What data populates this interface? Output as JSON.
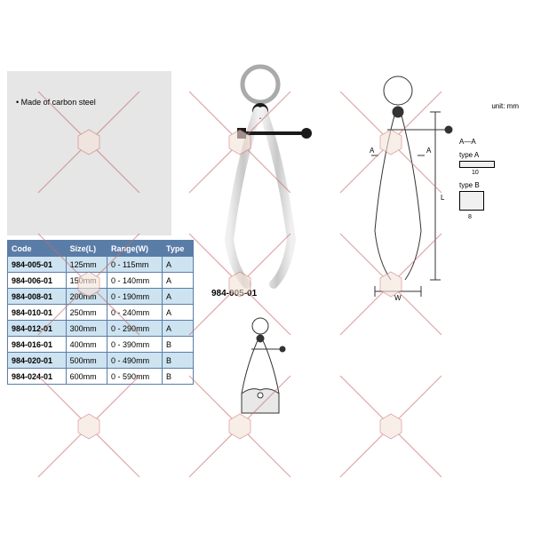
{
  "note": "Made of carbon steel",
  "model_label": "984-005-01",
  "unit_label": "unit: mm",
  "section_label": "A—A",
  "typeA_label": "type A",
  "typeB_label": "type B",
  "dimA": "10",
  "dimB1": "8",
  "dimB2": "8",
  "dim_W": "W",
  "dim_L": "L",
  "table": {
    "headers": [
      "Code",
      "Size(L)",
      "Range(W)",
      "Type"
    ],
    "rows": [
      [
        "984-005-01",
        "125mm",
        "0 - 115mm",
        "A"
      ],
      [
        "984-006-01",
        "150mm",
        "0 - 140mm",
        "A"
      ],
      [
        "984-008-01",
        "200mm",
        "0 - 190mm",
        "A"
      ],
      [
        "984-010-01",
        "250mm",
        "0 - 240mm",
        "A"
      ],
      [
        "984-012-01",
        "300mm",
        "0 - 290mm",
        "A"
      ],
      [
        "984-016-01",
        "400mm",
        "0 - 390mm",
        "B"
      ],
      [
        "984-020-01",
        "500mm",
        "0 - 490mm",
        "B"
      ],
      [
        "984-024-01",
        "600mm",
        "0 - 590mm",
        "B"
      ]
    ],
    "header_bg": "#5a7da8",
    "header_fg": "#ffffff",
    "row_alt_bg": "#cde3f0",
    "row_bg": "#ffffff",
    "border": "#5a7da8"
  },
  "watermark": {
    "stroke": "#c96a6a",
    "badge_fill": "#f5e4d9",
    "badge_stroke": "#c96a6a"
  },
  "colors": {
    "metal": "#d9d9d9",
    "metal_dark": "#9a9a9a",
    "black": "#1a1a1a",
    "line": "#333333"
  }
}
